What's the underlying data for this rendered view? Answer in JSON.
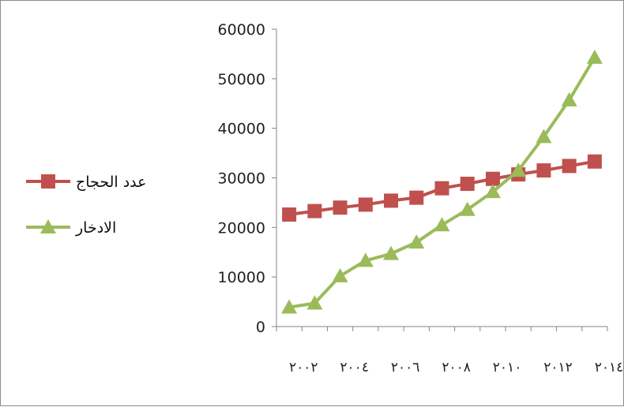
{
  "chart_data": {
    "type": "line",
    "title": "",
    "xlabel": "",
    "ylabel": "",
    "ylim": [
      0,
      60000
    ],
    "y_ticks": [
      "0",
      "10000",
      "20000",
      "30000",
      "40000",
      "50000",
      "60000"
    ],
    "x": [
      "٢٠٠٢",
      "٢٠٠٣",
      "٢٠٠٤",
      "٢٠٠٥",
      "٢٠٠٦",
      "٢٠٠٧",
      "٢٠٠٨",
      "٢٠٠٩",
      "٢٠١٠",
      "٢٠١١",
      "٢٠١٢",
      "٢٠١٣",
      "٢٠١٤"
    ],
    "x_tick_labels": [
      "٢٠٠٢",
      "٢٠٠٤",
      "٢٠٠٦",
      "٢٠٠٨",
      "٢٠١٠",
      "٢٠١٢",
      "٢٠١٤"
    ],
    "grid": false,
    "legend_position": "left",
    "series": [
      {
        "name": "عدد الحجاج",
        "color": "#c0504d",
        "marker": "square",
        "values": [
          22600,
          23300,
          24000,
          24600,
          25400,
          26000,
          27900,
          28800,
          29800,
          30700,
          31500,
          32400,
          33300
        ]
      },
      {
        "name": "الادخار",
        "color": "#9bbb59",
        "marker": "triangle",
        "values": [
          3900,
          4700,
          10200,
          13300,
          14700,
          17000,
          20500,
          23600,
          27200,
          31500,
          38300,
          45700,
          54300
        ]
      }
    ]
  }
}
